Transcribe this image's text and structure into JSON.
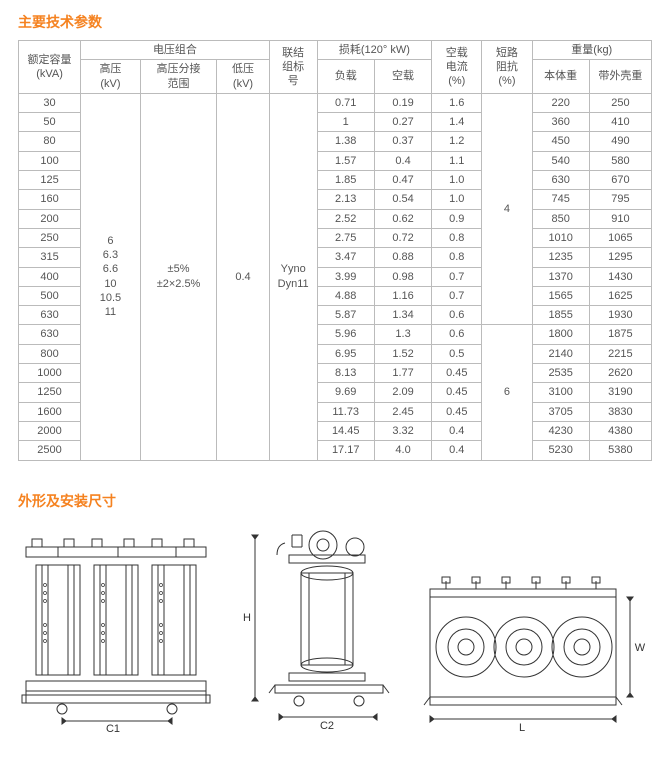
{
  "titles": {
    "spec": "主要技术参数",
    "dims": "外形及安装尺寸"
  },
  "headers": {
    "rated": "额定容量\n(kVA)",
    "voltage_group": "电压组合",
    "hv": "高压\n(kV)",
    "tap": "高压分接\n范围",
    "lv": "低压\n(kV)",
    "conn": "联结\n组标\n号",
    "loss": "损耗(120°  kW)",
    "load": "负载",
    "noload": "空载",
    "nl_current": "空载\n电流\n(%)",
    "impedance": "短路\n阻抗\n(%)",
    "weight": "重量(kg)",
    "body": "本体重",
    "shell": "带外壳重"
  },
  "merged": {
    "hv": "6\n6.3\n6.6\n10\n10.5\n11",
    "tap": "±5%\n±2×2.5%",
    "lv": "0.4",
    "conn": "Yyno\nDyn11",
    "imp1": "4",
    "imp2": "6"
  },
  "rows": [
    {
      "kva": "30",
      "load": "0.71",
      "noload": "0.19",
      "nlc": "1.6",
      "body": "220",
      "shell": "250"
    },
    {
      "kva": "50",
      "load": "1",
      "noload": "0.27",
      "nlc": "1.4",
      "body": "360",
      "shell": "410"
    },
    {
      "kva": "80",
      "load": "1.38",
      "noload": "0.37",
      "nlc": "1.2",
      "body": "450",
      "shell": "490"
    },
    {
      "kva": "100",
      "load": "1.57",
      "noload": "0.4",
      "nlc": "1.1",
      "body": "540",
      "shell": "580"
    },
    {
      "kva": "125",
      "load": "1.85",
      "noload": "0.47",
      "nlc": "1.0",
      "body": "630",
      "shell": "670"
    },
    {
      "kva": "160",
      "load": "2.13",
      "noload": "0.54",
      "nlc": "1.0",
      "body": "745",
      "shell": "795"
    },
    {
      "kva": "200",
      "load": "2.52",
      "noload": "0.62",
      "nlc": "0.9",
      "body": "850",
      "shell": "910"
    },
    {
      "kva": "250",
      "load": "2.75",
      "noload": "0.72",
      "nlc": "0.8",
      "body": "1010",
      "shell": "1065"
    },
    {
      "kva": "315",
      "load": "3.47",
      "noload": "0.88",
      "nlc": "0.8",
      "body": "1235",
      "shell": "1295"
    },
    {
      "kva": "400",
      "load": "3.99",
      "noload": "0.98",
      "nlc": "0.7",
      "body": "1370",
      "shell": "1430"
    },
    {
      "kva": "500",
      "load": "4.88",
      "noload": "1.16",
      "nlc": "0.7",
      "body": "1565",
      "shell": "1625"
    },
    {
      "kva": "630",
      "load": "5.87",
      "noload": "1.34",
      "nlc": "0.6",
      "body": "1855",
      "shell": "1930"
    },
    {
      "kva": "630",
      "load": "5.96",
      "noload": "1.3",
      "nlc": "0.6",
      "body": "1800",
      "shell": "1875"
    },
    {
      "kva": "800",
      "load": "6.95",
      "noload": "1.52",
      "nlc": "0.5",
      "body": "2140",
      "shell": "2215"
    },
    {
      "kva": "1000",
      "load": "8.13",
      "noload": "1.77",
      "nlc": "0.45",
      "body": "2535",
      "shell": "2620"
    },
    {
      "kva": "1250",
      "load": "9.69",
      "noload": "2.09",
      "nlc": "0.45",
      "body": "3100",
      "shell": "3190"
    },
    {
      "kva": "1600",
      "load": "11.73",
      "noload": "2.45",
      "nlc": "0.45",
      "body": "3705",
      "shell": "3830"
    },
    {
      "kva": "2000",
      "load": "14.45",
      "noload": "3.32",
      "nlc": "0.4",
      "body": "4230",
      "shell": "4380"
    },
    {
      "kva": "2500",
      "load": "17.17",
      "noload": "4.0",
      "nlc": "0.4",
      "body": "5230",
      "shell": "5380"
    }
  ],
  "dim_labels": {
    "c1": "C1",
    "c2": "C2",
    "h": "H",
    "l": "L",
    "w": "W"
  },
  "style": {
    "title_color": "#f58220",
    "border_color": "#bbb",
    "text_color": "#555",
    "background": "#fff",
    "font_size_table": 11,
    "font_size_title": 14,
    "diagram_stroke": "#333"
  }
}
